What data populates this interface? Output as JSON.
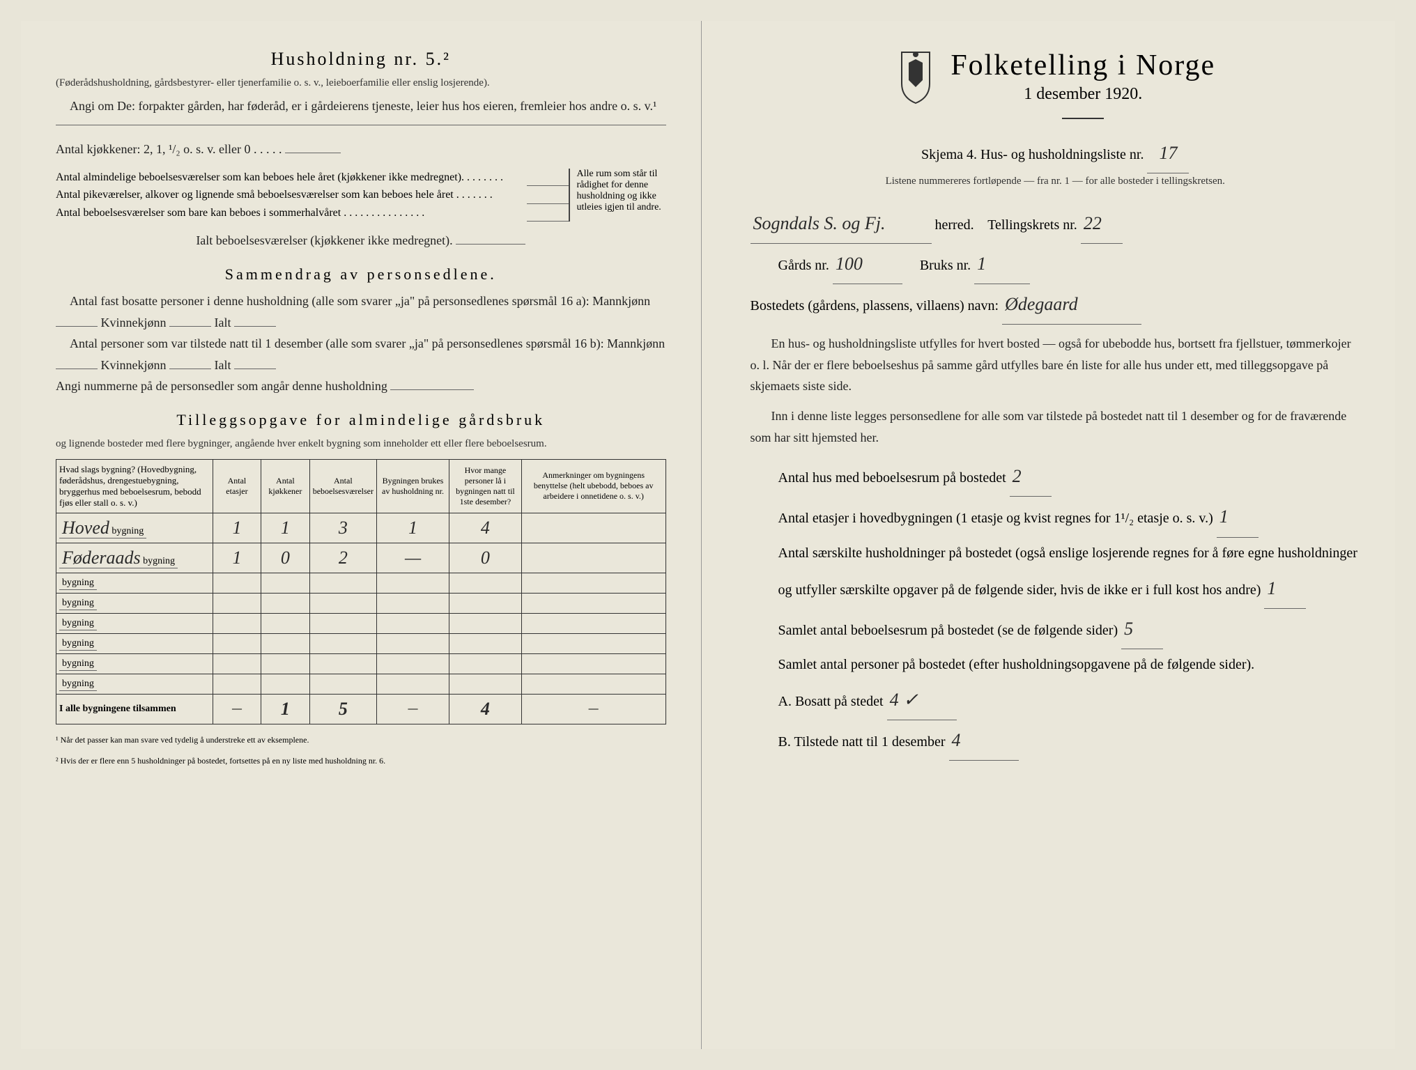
{
  "left": {
    "heading": "Husholdning nr. 5.²",
    "intro1": "(Føderådshusholdning, gårdsbestyrer- eller tjenerfamilie o. s. v., leieboerfamilie eller enslig losjerende).",
    "intro2": "Angi om De: forpakter gården, har føderåd, er i gårdeierens tjeneste, leier hus hos eieren, fremleier hos andre o. s. v.¹",
    "kjokkener": "Antal kjøkkener: 2, 1, ¹/₂ o. s. v. eller 0 . . . . .",
    "brace_items": [
      "Antal almindelige beboelsesværelser som kan beboes hele året (kjøkkener ikke medregnet). . . . . . . .",
      "Antal pikeværelser, alkover og lignende små beboelsesværelser som kan beboes hele året . . . . . . .",
      "Antal beboelsesværelser som bare kan beboes i sommerhalvåret . . . . . . . . . . . . . . ."
    ],
    "brace_right": "Alle rum som står til rådighet for denne husholdning og ikke utleies igjen til andre.",
    "ialt_line": "Ialt beboelsesværelser (kjøkkener ikke medregnet).",
    "sammendrag_heading": "Sammendrag av personsedlene.",
    "sammen1": "Antal fast bosatte personer i denne husholdning (alle som svarer „ja\" på personsedlenes spørsmål 16 a): Mannkjønn",
    "kvinnekjonn": "Kvinnekjønn",
    "ialt": "Ialt",
    "sammen2": "Antal personer som var tilstede natt til 1 desember (alle som svarer „ja\" på personsedlenes spørsmål 16 b): Mannkjønn",
    "angi": "Angi nummerne på de personsedler som angår denne husholdning",
    "tillegg_heading": "Tilleggsopgave for almindelige gårdsbruk",
    "tillegg_sub": "og lignende bosteder med flere bygninger, angående hver enkelt bygning som inneholder ett eller flere beboelsesrum.",
    "table": {
      "headers": [
        "Hvad slags bygning?\n(Hovedbygning, føderådshus, drengestuebygning, bryggerhus med beboelsesrum, bebodd fjøs eller stall o. s. v.)",
        "Antal etasjer",
        "Antal kjøkkener",
        "Antal beboelsesværelser",
        "Bygningen brukes av husholdning nr.",
        "Hvor mange personer lå i bygningen natt til 1ste desember?",
        "Anmerkninger om bygningens benyttelse (helt ubebodd, beboes av arbeidere i onnetidene o. s. v.)"
      ],
      "rows": [
        {
          "name": "Hoved",
          "etasjer": "1",
          "kjokkener": "1",
          "vaerelser": "3",
          "husholdning": "1",
          "personer": "4",
          "anm": ""
        },
        {
          "name": "Føderaads",
          "etasjer": "1",
          "kjokkener": "0",
          "vaerelser": "2",
          "husholdning": "—",
          "personer": "0",
          "anm": ""
        },
        {
          "name": "",
          "etasjer": "",
          "kjokkener": "",
          "vaerelser": "",
          "husholdning": "",
          "personer": "",
          "anm": ""
        },
        {
          "name": "",
          "etasjer": "",
          "kjokkener": "",
          "vaerelser": "",
          "husholdning": "",
          "personer": "",
          "anm": ""
        },
        {
          "name": "",
          "etasjer": "",
          "kjokkener": "",
          "vaerelser": "",
          "husholdning": "",
          "personer": "",
          "anm": ""
        },
        {
          "name": "",
          "etasjer": "",
          "kjokkener": "",
          "vaerelser": "",
          "husholdning": "",
          "personer": "",
          "anm": ""
        },
        {
          "name": "",
          "etasjer": "",
          "kjokkener": "",
          "vaerelser": "",
          "husholdning": "",
          "personer": "",
          "anm": ""
        },
        {
          "name": "",
          "etasjer": "",
          "kjokkener": "",
          "vaerelser": "",
          "husholdning": "",
          "personer": "",
          "anm": ""
        }
      ],
      "bygning_label": "bygning",
      "total_label": "I alle bygningene tilsammen",
      "total": {
        "etasjer": "—",
        "kjokkener": "1",
        "vaerelser": "5",
        "husholdning": "—",
        "personer": "4",
        "anm": "—"
      }
    },
    "footnotes": [
      "¹ Når det passer kan man svare ved tydelig å understreke ett av eksemplene.",
      "² Hvis der er flere enn 5 husholdninger på bostedet, fortsettes på en ny liste med husholdning nr. 6."
    ]
  },
  "right": {
    "title": "Folketelling i Norge",
    "subtitle": "1 desember 1920.",
    "skjema": "Skjema 4. Hus- og husholdningsliste nr.",
    "skjema_nr": "17",
    "listene": "Listene nummereres fortløpende — fra nr. 1 — for alle bosteder i tellingskretsen.",
    "herred_value": "Sogndals S. og Fj.",
    "herred_label": "herred.",
    "tellingskrets_label": "Tellingskrets nr.",
    "tellingskrets_nr": "22",
    "gards_label": "Gårds nr.",
    "gards_nr": "100",
    "bruks_label": "Bruks nr.",
    "bruks_nr": "1",
    "bosted_label": "Bostedets (gårdens, plassens, villaens) navn:",
    "bosted_value": "Ødegaard",
    "para1": "En hus- og husholdningsliste utfylles for hvert bosted — også for ubebodde hus, bortsett fra fjellstuer, tømmerkojer o. l. Når der er flere beboelseshus på samme gård utfylles bare én liste for alle hus under ett, med tilleggsopgave på skjemaets siste side.",
    "para2": "Inn i denne liste legges personsedlene for alle som var tilstede på bostedet natt til 1 desember og for de fraværende som har sitt hjemsted her.",
    "antal_hus_label": "Antal hus med beboelsesrum på bostedet",
    "antal_hus_value": "2",
    "antal_etasjer_label": "Antal etasjer i hovedbygningen (1 etasje og kvist regnes for 1¹/₂ etasje o. s. v.)",
    "antal_etasjer_value": "1",
    "antal_hushold_label": "Antal særskilte husholdninger på bostedet (også enslige losjerende regnes for å føre egne husholdninger og utfyller særskilte opgaver på de følgende sider, hvis de ikke er i full kost hos andre)",
    "antal_hushold_value": "1",
    "samlet_rum_label": "Samlet antal beboelsesrum på bostedet (se de følgende sider)",
    "samlet_rum_value": "5",
    "samlet_personer_label": "Samlet antal personer på bostedet (efter husholdningsopgavene på de følgende sider).",
    "bosatt_label": "A. Bosatt på stedet",
    "bosatt_value": "4 ✓",
    "tilstede_label": "B. Tilstede natt til 1 desember",
    "tilstede_value": "4"
  },
  "colors": {
    "paper": "#eae7da",
    "ink": "#2a2a2a",
    "border": "#333333"
  }
}
